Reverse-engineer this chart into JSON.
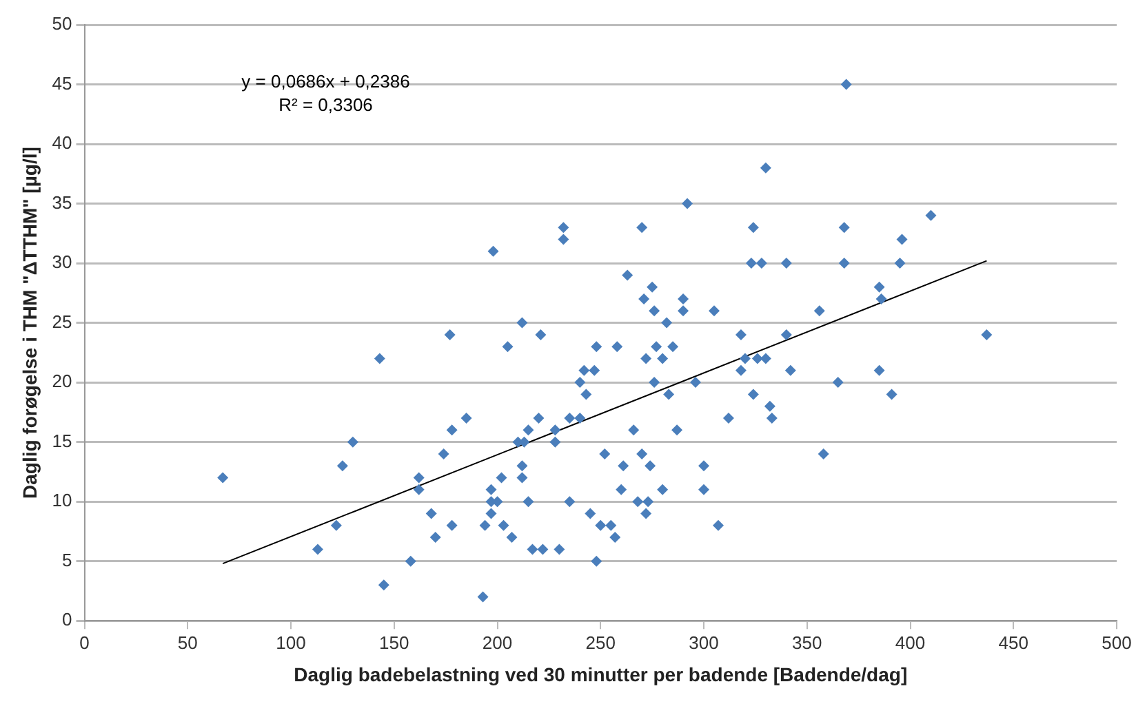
{
  "chart_data": {
    "type": "scatter",
    "xlabel": "Daglig badebelastning ved 30 minutter per badende [Badende/dag]",
    "ylabel": "Daglig forøgelse i THM \"ΔTTHM\" [µg/l]",
    "annotations": [
      "y = 0,0686x + 0,2386",
      "R² = 0,3306"
    ],
    "xlim": [
      0,
      500
    ],
    "xticks": [
      0,
      50,
      100,
      150,
      200,
      250,
      300,
      350,
      400,
      450,
      500
    ],
    "ylim": [
      0,
      50
    ],
    "yticks": [
      0,
      5,
      10,
      15,
      20,
      25,
      30,
      35,
      40,
      45,
      50
    ],
    "grid": "y",
    "legend": false,
    "marker": "diamond",
    "series": [
      {
        "color": "#4a7ebb",
        "x": [
          67,
          113,
          122,
          125,
          130,
          143,
          145,
          158,
          162,
          162,
          168,
          170,
          174,
          177,
          178,
          178,
          185,
          193,
          194,
          197,
          197,
          197,
          198,
          200,
          202,
          203,
          205,
          207,
          210,
          212,
          212,
          212,
          213,
          215,
          215,
          217,
          220,
          221,
          222,
          228,
          228,
          230,
          232,
          232,
          235,
          235,
          240,
          240,
          242,
          243,
          245,
          247,
          248,
          248,
          250,
          252,
          255,
          257,
          258,
          260,
          261,
          263,
          266,
          268,
          270,
          270,
          271,
          272,
          272,
          273,
          274,
          275,
          276,
          276,
          277,
          280,
          280,
          282,
          283,
          285,
          287,
          290,
          290,
          292,
          296,
          300,
          300,
          305,
          307,
          312,
          318,
          318,
          320,
          323,
          324,
          324,
          326,
          328,
          330,
          330,
          332,
          333,
          340,
          340,
          342,
          356,
          358,
          365,
          368,
          368,
          369,
          385,
          385,
          386,
          391,
          395,
          396,
          410,
          437
        ],
        "values": [
          12,
          6,
          8,
          13,
          15,
          22,
          3,
          5,
          12,
          11,
          9,
          7,
          14,
          24,
          16,
          8,
          17,
          2,
          8,
          10,
          9,
          11,
          31,
          10,
          12,
          8,
          23,
          7,
          15,
          25,
          13,
          12,
          15,
          10,
          16,
          6,
          17,
          24,
          6,
          16,
          15,
          6,
          33,
          32,
          10,
          17,
          17,
          20,
          21,
          19,
          9,
          21,
          23,
          5,
          8,
          14,
          8,
          7,
          23,
          11,
          13,
          29,
          16,
          10,
          14,
          33,
          27,
          9,
          22,
          10,
          13,
          28,
          20,
          26,
          23,
          22,
          11,
          25,
          19,
          23,
          16,
          27,
          26,
          35,
          20,
          13,
          11,
          26,
          8,
          17,
          24,
          21,
          22,
          30,
          33,
          19,
          22,
          30,
          38,
          22,
          18,
          17,
          30,
          24,
          21,
          26,
          14,
          20,
          30,
          33,
          45,
          21,
          28,
          27,
          19,
          30,
          32,
          34,
          24
        ]
      },
      {
        "type": "line",
        "color": "#000000",
        "marker": "none",
        "x": [
          67,
          437
        ],
        "values": [
          4.8,
          30.2
        ]
      }
    ]
  }
}
